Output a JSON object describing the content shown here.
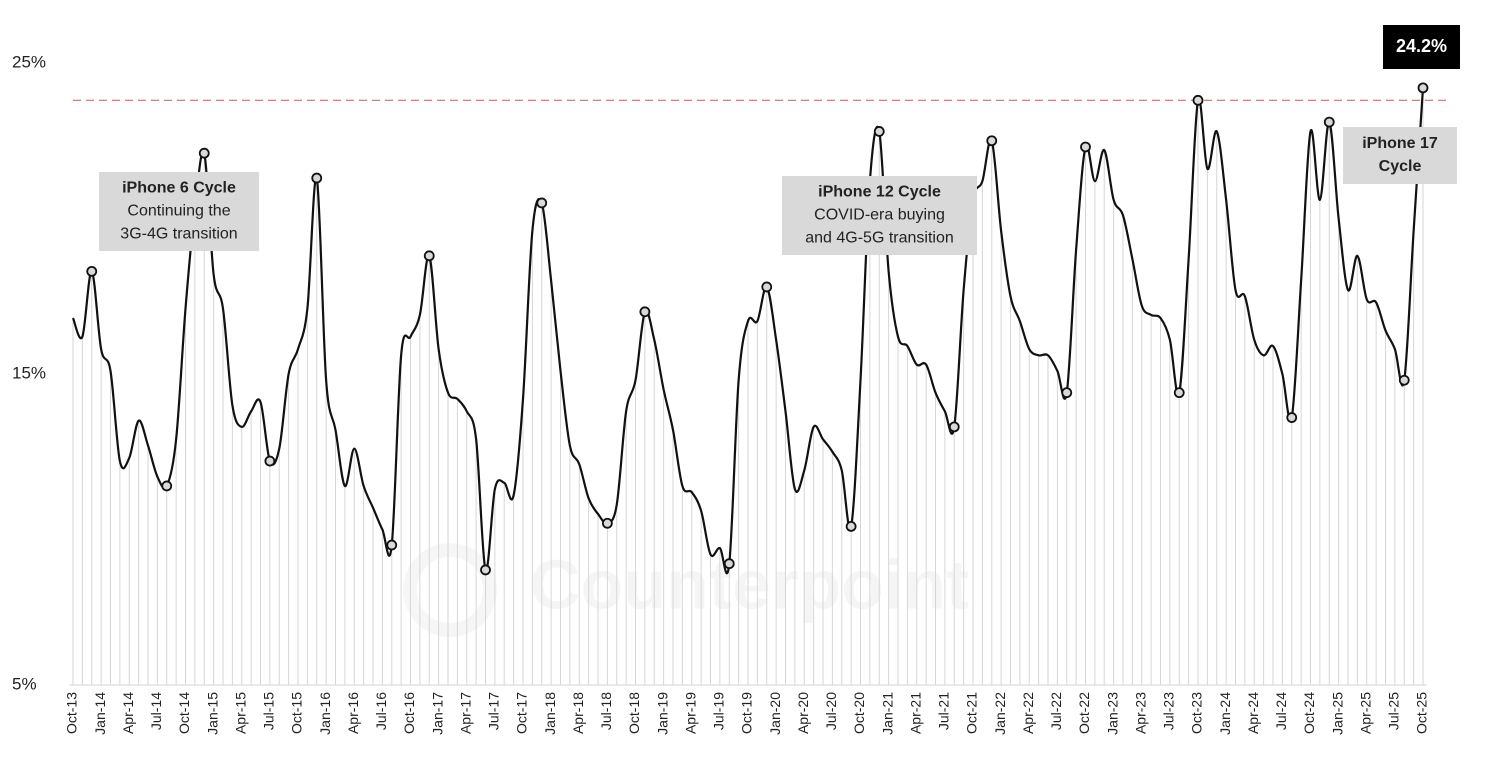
{
  "chart_data": {
    "type": "line",
    "watermark": "Counterpoint",
    "ylim": [
      5,
      25
    ],
    "yticks": [
      {
        "value": 5,
        "label": "5%"
      },
      {
        "value": 15,
        "label": "15%"
      },
      {
        "value": 25,
        "label": "25%"
      }
    ],
    "color": "#111111",
    "drop_line_color": "#d6d6d6",
    "marker_fill": "#d9d9d9",
    "reference_line": {
      "value": 23.8,
      "color": "#e06666"
    },
    "markers": [
      2,
      10,
      14,
      21,
      26,
      34,
      38,
      44,
      50,
      57,
      61,
      70,
      74,
      83,
      86,
      94,
      98,
      106,
      108,
      118,
      120,
      130,
      134,
      142,
      144
    ],
    "categories": [
      "Oct-13",
      null,
      null,
      "Jan-14",
      null,
      null,
      "Apr-14",
      null,
      null,
      "Jul-14",
      null,
      null,
      "Oct-14",
      null,
      null,
      "Jan-15",
      null,
      null,
      "Apr-15",
      null,
      null,
      "Jul-15",
      null,
      null,
      "Oct-15",
      null,
      null,
      "Jan-16",
      null,
      null,
      "Apr-16",
      null,
      null,
      "Jul-16",
      null,
      null,
      "Oct-16",
      null,
      null,
      "Jan-17",
      null,
      null,
      "Apr-17",
      null,
      null,
      "Jul-17",
      null,
      null,
      "Oct-17",
      null,
      null,
      "Jan-18",
      null,
      null,
      "Apr-18",
      null,
      null,
      "Jul-18",
      null,
      null,
      "Oct-18",
      null,
      null,
      "Jan-19",
      null,
      null,
      "Apr-19",
      null,
      null,
      "Jul-19",
      null,
      null,
      "Oct-19",
      null,
      null,
      "Jan-20",
      null,
      null,
      "Apr-20",
      null,
      null,
      "Jul-20",
      null,
      null,
      "Oct-20",
      null,
      null,
      "Jan-21",
      null,
      null,
      "Apr-21",
      null,
      null,
      "Jul-21",
      null,
      null,
      "Oct-21",
      null,
      null,
      "Jan-22",
      null,
      null,
      "Apr-22",
      null,
      null,
      "Jul-22",
      null,
      null,
      "Oct-22",
      null,
      null,
      "Jan-23",
      null,
      null,
      "Apr-23",
      null,
      null,
      "Jul-23",
      null,
      null,
      "Oct-23",
      null,
      null,
      "Jan-24",
      null,
      null,
      "Apr-24",
      null,
      null,
      "Jul-24",
      null,
      null,
      "Oct-24",
      null,
      null,
      "Jan-25",
      null,
      null,
      "Apr-25",
      null,
      null,
      "Jul-25",
      null,
      null,
      "Oct-25"
    ],
    "values": [
      16.8,
      16.2,
      18.3,
      15.8,
      15.1,
      12.2,
      12.3,
      13.5,
      12.7,
      11.7,
      11.4,
      12.9,
      17.1,
      20.3,
      22.1,
      18.2,
      17.1,
      14.0,
      13.3,
      13.8,
      14.1,
      12.2,
      12.6,
      15.0,
      15.8,
      17.1,
      21.3,
      14.8,
      13.2,
      11.4,
      12.6,
      11.4,
      10.7,
      10.0,
      9.5,
      15.6,
      16.2,
      16.9,
      18.8,
      15.8,
      14.4,
      14.2,
      13.8,
      12.9,
      8.7,
      11.3,
      11.5,
      11.1,
      14.2,
      19.6,
      20.5,
      18.0,
      15.1,
      12.7,
      12.1,
      11.0,
      10.5,
      10.2,
      10.8,
      13.8,
      14.8,
      17.0,
      16.1,
      14.5,
      13.2,
      11.4,
      11.2,
      10.6,
      9.2,
      9.4,
      8.9,
      14.8,
      16.7,
      16.7,
      17.8,
      16.1,
      13.8,
      11.3,
      11.9,
      13.3,
      12.9,
      12.5,
      11.9,
      10.1,
      14.8,
      21.2,
      22.8,
      18.3,
      16.2,
      15.9,
      15.3,
      15.3,
      14.4,
      13.8,
      13.3,
      17.7,
      20.6,
      21.2,
      22.5,
      19.6,
      17.5,
      16.7,
      15.8,
      15.6,
      15.6,
      15.1,
      14.4,
      19.0,
      22.3,
      21.2,
      22.2,
      20.6,
      20.1,
      18.7,
      17.2,
      16.9,
      16.8,
      16.1,
      14.4,
      18.7,
      23.8,
      21.6,
      22.8,
      20.6,
      17.7,
      17.5,
      16.1,
      15.6,
      15.9,
      15.0,
      13.6,
      18.0,
      22.8,
      20.6,
      23.1,
      20.0,
      17.7,
      18.8,
      17.4,
      17.3,
      16.4,
      15.8,
      14.8,
      19.6,
      24.2
    ],
    "value_labels": [
      null,
      null,
      null,
      null,
      null,
      null,
      null,
      null,
      null,
      null,
      null,
      null,
      null,
      null,
      null,
      null,
      null,
      null,
      null,
      null,
      null,
      null,
      null,
      null,
      null,
      null,
      null,
      null,
      null,
      null,
      null,
      null,
      null,
      null,
      null,
      null,
      null,
      null,
      null,
      null,
      null,
      null,
      null,
      null,
      null,
      null,
      null,
      null,
      null,
      null,
      null,
      null,
      null,
      null,
      null,
      null,
      null,
      null,
      null,
      null,
      null,
      null,
      null,
      null,
      null,
      null,
      null,
      null,
      null,
      null,
      null,
      null,
      null,
      null,
      null,
      null,
      null,
      null,
      null,
      null,
      null,
      null,
      null,
      null,
      null,
      null,
      null,
      null,
      null,
      null,
      null,
      null,
      null,
      null,
      null,
      null,
      null,
      null,
      null,
      null,
      null,
      null,
      null,
      null,
      null,
      null,
      null,
      null,
      null,
      null,
      null,
      null,
      null,
      null,
      null,
      null,
      null,
      null,
      null,
      null,
      null,
      null,
      null,
      null,
      null,
      null,
      null,
      null,
      null,
      null,
      null,
      null,
      null,
      null,
      null,
      null,
      null,
      null,
      null,
      null,
      null,
      null,
      null,
      null,
      "24.2%"
    ],
    "annotations": [
      {
        "title": [
          "iPhone 6 Cycle"
        ],
        "lines": [
          "Continuing the",
          "3G-4G transition"
        ]
      },
      {
        "title": [
          "iPhone 12 Cycle"
        ],
        "lines": [
          "COVID-era buying",
          "and 4G-5G transition"
        ]
      },
      {
        "title": [
          "iPhone 17",
          "Cycle"
        ],
        "lines": []
      }
    ]
  }
}
